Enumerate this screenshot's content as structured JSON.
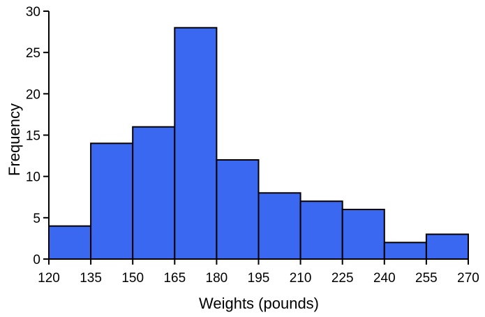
{
  "chart_data": {
    "type": "bar",
    "subtype": "histogram",
    "title": "",
    "xlabel": "Weights (pounds)",
    "ylabel": "Frequency",
    "bin_edges": [
      120,
      135,
      150,
      165,
      180,
      195,
      210,
      225,
      240,
      255,
      270
    ],
    "categories": [
      "120-135",
      "135-150",
      "150-165",
      "165-180",
      "180-195",
      "195-210",
      "210-225",
      "225-240",
      "240-255",
      "255-270"
    ],
    "values": [
      4,
      14,
      16,
      28,
      12,
      8,
      7,
      6,
      2,
      3
    ],
    "xlim": [
      120,
      270
    ],
    "ylim": [
      0,
      30
    ],
    "x_ticks": [
      120,
      135,
      150,
      165,
      180,
      195,
      210,
      225,
      240,
      255,
      270
    ],
    "y_ticks": [
      0,
      5,
      10,
      15,
      20,
      25,
      30
    ],
    "grid": false,
    "legend": false,
    "colors": {
      "bar_fill": "#3B68F1",
      "bar_stroke": "#000000",
      "axis": "#000000",
      "text": "#000000",
      "background": "#FFFFFF"
    }
  }
}
